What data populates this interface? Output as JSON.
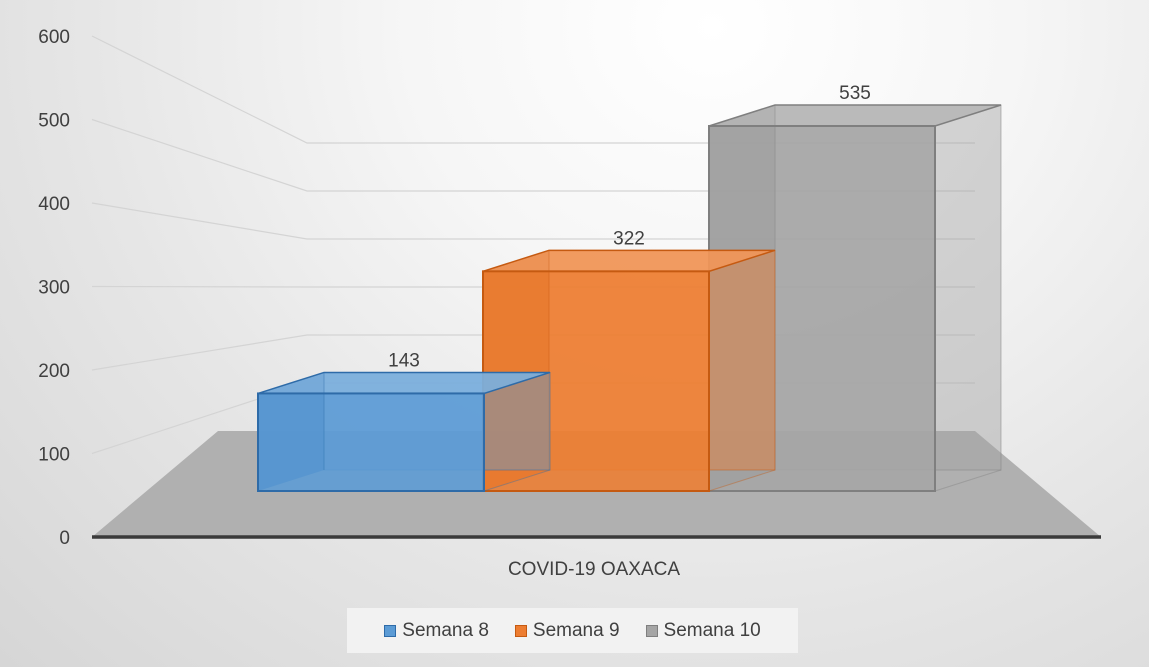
{
  "chart_data": {
    "type": "bar",
    "categories": [
      "COVID-19 OAXACA"
    ],
    "series": [
      {
        "name": "Semana 8",
        "values": [
          143
        ],
        "color": "#5B9BD5",
        "edge": "#2E6BA8"
      },
      {
        "name": "Semana 9",
        "values": [
          322
        ],
        "color": "#ED7D31",
        "edge": "#C55A11"
      },
      {
        "name": "Semana 10",
        "values": [
          535
        ],
        "color": "#A5A5A5",
        "edge": "#7F7F7F"
      }
    ],
    "ylim": [
      0,
      600
    ],
    "yticks": [
      "0",
      "100",
      "200",
      "300",
      "400",
      "500",
      "600"
    ],
    "data_labels": [
      "143",
      "322",
      "535"
    ],
    "legend_position": "bottom",
    "grid": true,
    "style": "3d-column"
  }
}
